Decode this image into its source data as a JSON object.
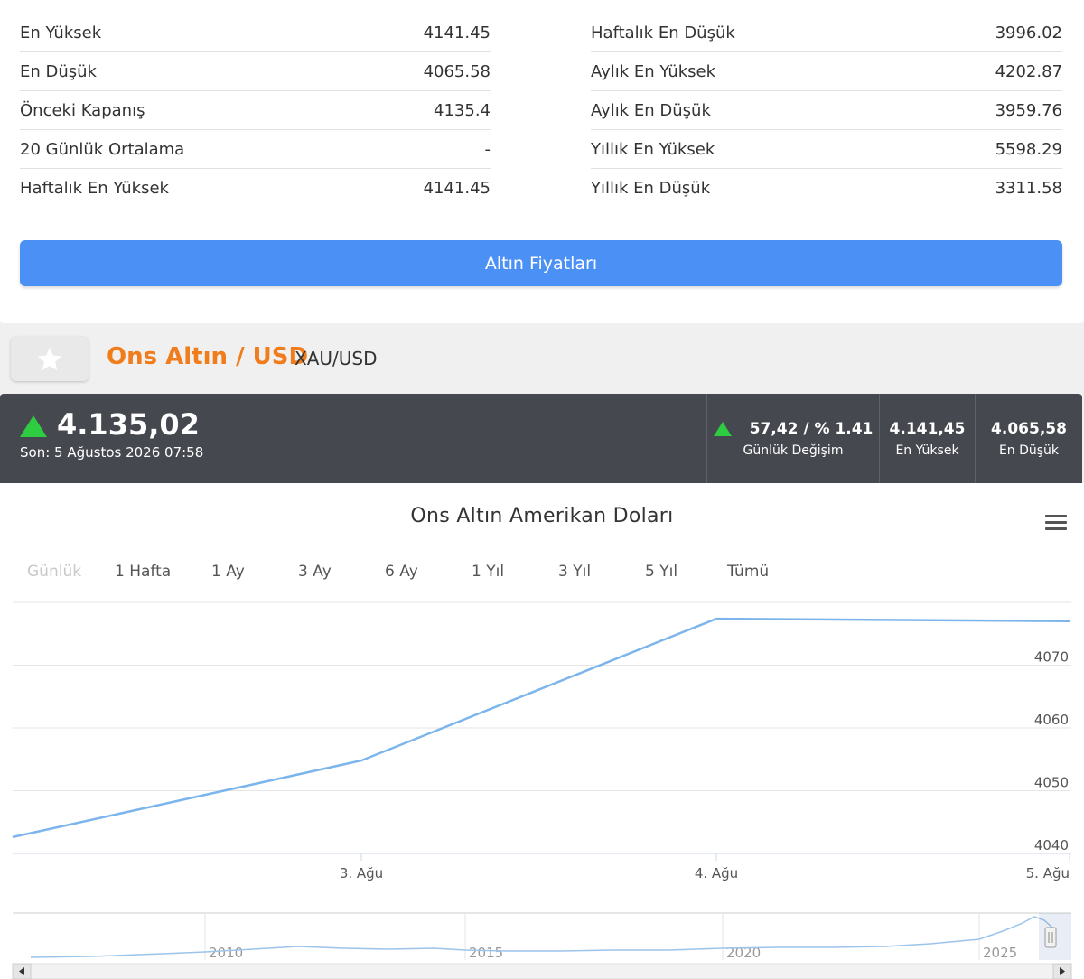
{
  "stats": {
    "left": [
      {
        "label": "En Yüksek",
        "value": "4141.45"
      },
      {
        "label": "En Düşük",
        "value": "4065.58"
      },
      {
        "label": "Önceki Kapanış",
        "value": "4135.4"
      },
      {
        "label": "20 Günlük Ortalama",
        "value": "-"
      },
      {
        "label": "Haftalık En Yüksek",
        "value": "4141.45"
      }
    ],
    "right": [
      {
        "label": "Haftalık En Düşük",
        "value": "3996.02"
      },
      {
        "label": "Aylık En Yüksek",
        "value": "4202.87"
      },
      {
        "label": "Aylık En Düşük",
        "value": "3959.76"
      },
      {
        "label": "Yıllık En Yüksek",
        "value": "5598.29"
      },
      {
        "label": "Yıllık En Düşük",
        "value": "3311.58"
      }
    ]
  },
  "gold_button_label": "Altın Fiyatları",
  "asset": {
    "title": "Ons Altın / USD",
    "symbol": "XAU/USD"
  },
  "price": {
    "last": "4.135,02",
    "time": "Son: 5 Ağustos 2026 07:58",
    "change_value": "57,42 / % 1.41",
    "change_label": "Günlük Değişim",
    "high_value": "4.141,45",
    "high_label": "En Yüksek",
    "low_value": "4.065,58",
    "low_label": "En Düşük"
  },
  "colors": {
    "accent_orange": "#f07c1c",
    "button_blue": "#4a90f5",
    "up_green": "#2ecc40",
    "line_blue": "#7cb5ec",
    "dark_bar": "#45484e"
  },
  "icons": {
    "favorite": "star-icon",
    "menu": "hamburger-menu-icon"
  },
  "range_buttons": [
    "Günlük",
    "1 Hafta",
    "1 Ay",
    "3 Ay",
    "6 Ay",
    "1 Yıl",
    "3 Yıl",
    "5 Yıl",
    "Tümü"
  ],
  "range_disabled_index": 0,
  "chart_data": {
    "type": "line",
    "title": "Ons Altın Amerikan Doları",
    "x_ticks": [
      "3. Ağu",
      "4. Ağu",
      "5. Ağu"
    ],
    "y_ticks": [
      4040,
      4050,
      4060,
      4070
    ],
    "ylim": [
      4040,
      4080
    ],
    "grid": true,
    "series": [
      {
        "points": [
          {
            "x": "2. Ağu",
            "y": 4042.6
          },
          {
            "x": "3. Ağu",
            "y": 4054.8
          },
          {
            "x": "4. Ağu",
            "y": 4077.4
          },
          {
            "x": "5. Ağu",
            "y": 4077.0
          }
        ]
      }
    ],
    "navigator": {
      "x_ticks": [
        "2010",
        "2015",
        "2020",
        "2025"
      ]
    }
  }
}
